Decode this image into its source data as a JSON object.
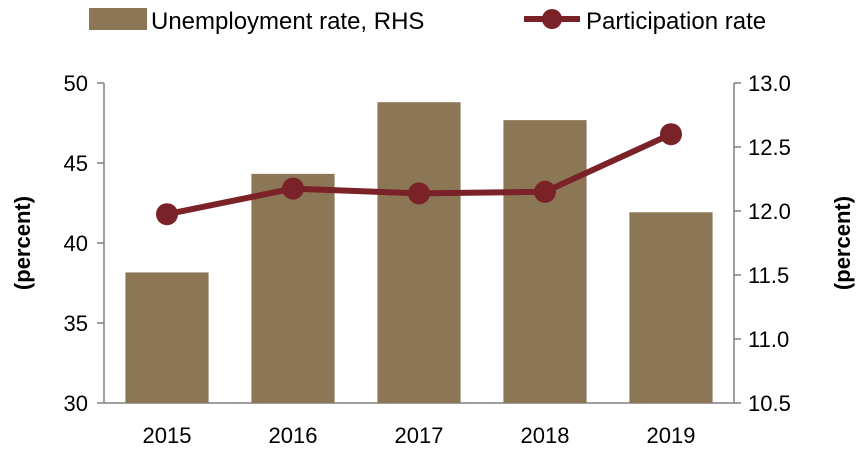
{
  "chart_data": {
    "type": "bar+line",
    "categories": [
      "2015",
      "2016",
      "2017",
      "2018",
      "2019"
    ],
    "series": [
      {
        "name": "Unemployment rate, RHS",
        "kind": "bar",
        "axis": "right",
        "color": "#8B7655",
        "values": [
          11.52,
          12.29,
          12.85,
          12.71,
          11.99
        ]
      },
      {
        "name": "Participation rate",
        "kind": "line",
        "axis": "left",
        "color": "#7B2128",
        "values": [
          41.8,
          43.4,
          43.1,
          43.2,
          46.8
        ]
      }
    ],
    "left_axis": {
      "label": "(percent)",
      "ylim": [
        30,
        50
      ],
      "ticks": [
        "30",
        "35",
        "40",
        "45",
        "50"
      ]
    },
    "right_axis": {
      "label": "(percent)",
      "ylim": [
        10.5,
        13.0
      ],
      "ticks": [
        "10.5",
        "11.0",
        "11.5",
        "12.0",
        "12.5",
        "13.0"
      ]
    },
    "legend_position": "top",
    "grid": false
  }
}
